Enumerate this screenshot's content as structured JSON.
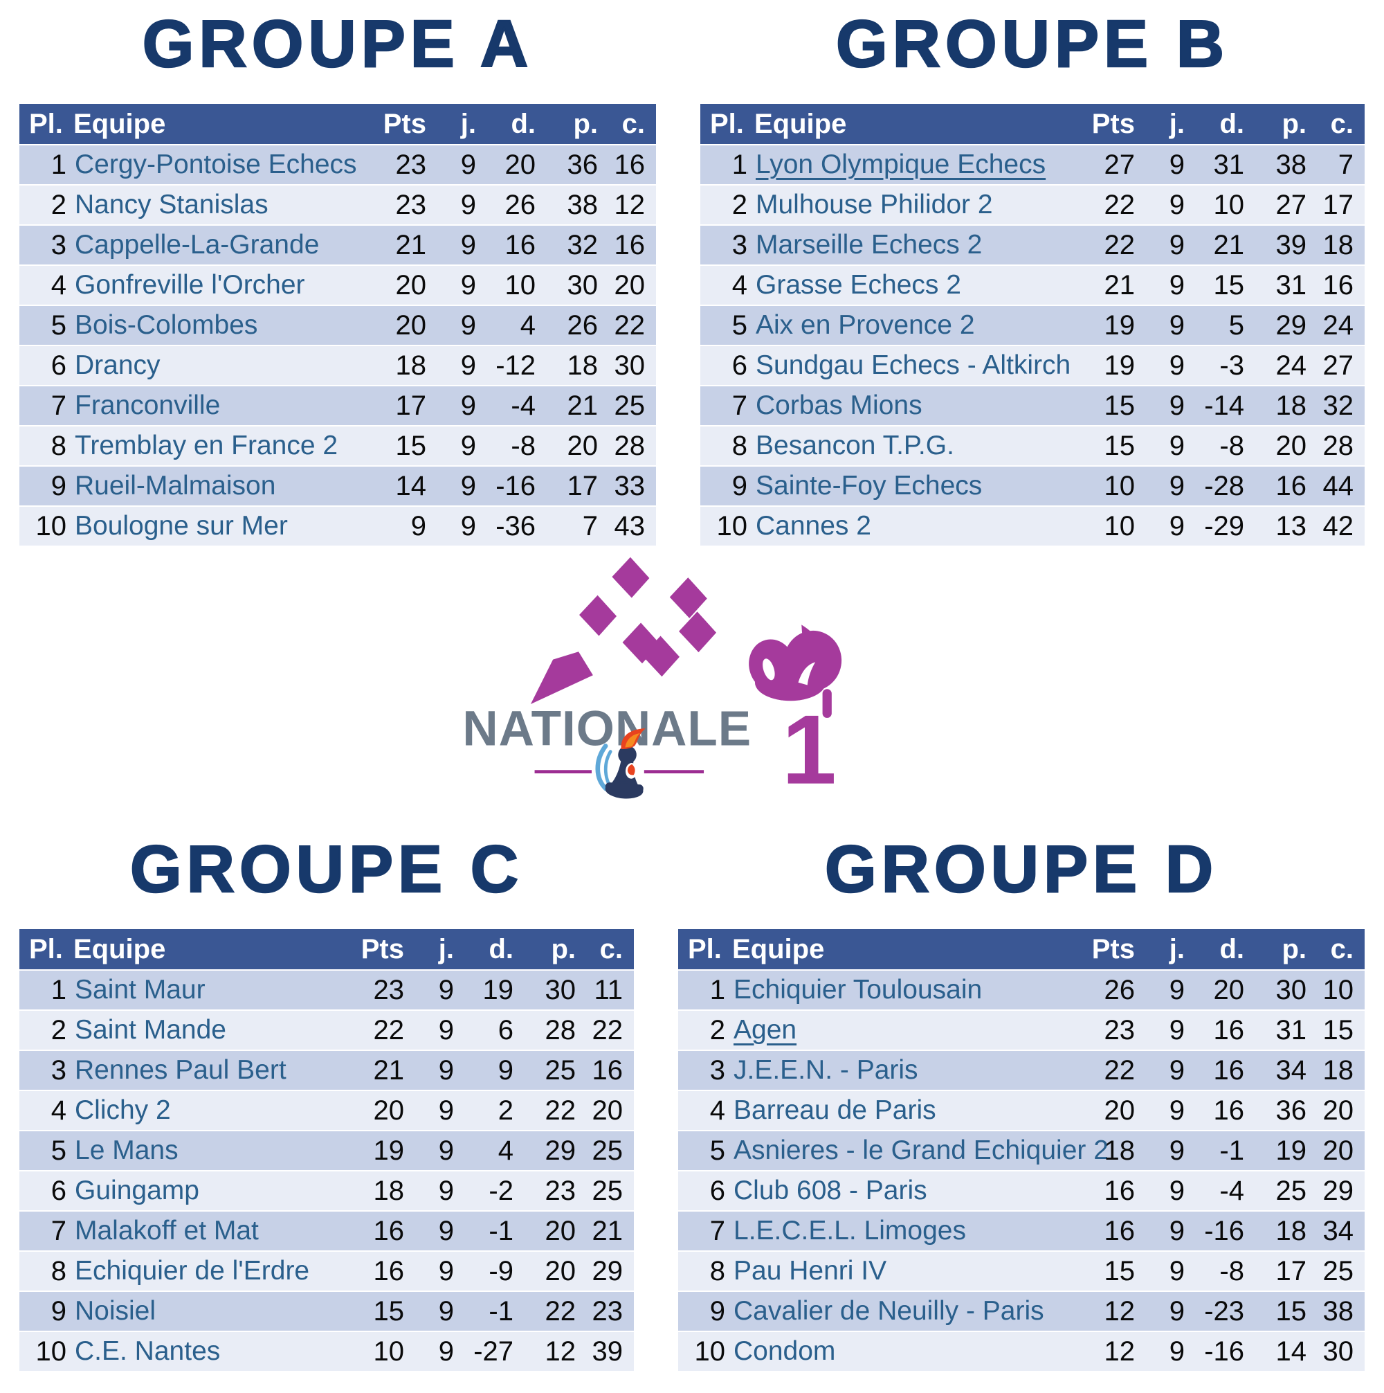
{
  "colors": {
    "header_bg": "#3A5794",
    "row_odd": "#C7D1E7",
    "row_even": "#E9EDF6",
    "team_text": "#2A5F8C",
    "stat_text": "#0a0a0a",
    "group_title": "#17396B",
    "logo_magenta": "#A53A9C",
    "logo_gray": "#6C7A89",
    "pawn_navy": "#2B3A60",
    "comb_red": "#E8431F",
    "comb_orange": "#F58B1F",
    "swoosh_blue": "#5FA8D8"
  },
  "logo": {
    "wordmark": "NATIONALE",
    "number": "1"
  },
  "chart_data": [
    {
      "type": "table",
      "title": "GROUPE A",
      "columns": [
        "Pl.",
        "Equipe",
        "Pts",
        "j.",
        "d.",
        "p.",
        "c."
      ],
      "rows": [
        {
          "pl": 1,
          "team": "Cergy-Pontoise Echecs",
          "pts": 23,
          "j": 9,
          "d": 20,
          "p": 36,
          "c": 16,
          "link": false
        },
        {
          "pl": 2,
          "team": "Nancy Stanislas",
          "pts": 23,
          "j": 9,
          "d": 26,
          "p": 38,
          "c": 12,
          "link": false
        },
        {
          "pl": 3,
          "team": "Cappelle-La-Grande",
          "pts": 21,
          "j": 9,
          "d": 16,
          "p": 32,
          "c": 16,
          "link": false
        },
        {
          "pl": 4,
          "team": "Gonfreville l'Orcher",
          "pts": 20,
          "j": 9,
          "d": 10,
          "p": 30,
          "c": 20,
          "link": false
        },
        {
          "pl": 5,
          "team": "Bois-Colombes",
          "pts": 20,
          "j": 9,
          "d": 4,
          "p": 26,
          "c": 22,
          "link": false
        },
        {
          "pl": 6,
          "team": "Drancy",
          "pts": 18,
          "j": 9,
          "d": -12,
          "p": 18,
          "c": 30,
          "link": false
        },
        {
          "pl": 7,
          "team": "Franconville",
          "pts": 17,
          "j": 9,
          "d": -4,
          "p": 21,
          "c": 25,
          "link": false
        },
        {
          "pl": 8,
          "team": "Tremblay en France 2",
          "pts": 15,
          "j": 9,
          "d": -8,
          "p": 20,
          "c": 28,
          "link": false
        },
        {
          "pl": 9,
          "team": "Rueil-Malmaison",
          "pts": 14,
          "j": 9,
          "d": -16,
          "p": 17,
          "c": 33,
          "link": false
        },
        {
          "pl": 10,
          "team": "Boulogne sur Mer",
          "pts": 9,
          "j": 9,
          "d": -36,
          "p": 7,
          "c": 43,
          "link": false
        }
      ]
    },
    {
      "type": "table",
      "title": "GROUPE B",
      "columns": [
        "Pl.",
        "Equipe",
        "Pts",
        "j.",
        "d.",
        "p.",
        "c."
      ],
      "rows": [
        {
          "pl": 1,
          "team": "Lyon Olympique Echecs",
          "pts": 27,
          "j": 9,
          "d": 31,
          "p": 38,
          "c": 7,
          "link": true
        },
        {
          "pl": 2,
          "team": "Mulhouse Philidor 2",
          "pts": 22,
          "j": 9,
          "d": 10,
          "p": 27,
          "c": 17,
          "link": false
        },
        {
          "pl": 3,
          "team": "Marseille Echecs 2",
          "pts": 22,
          "j": 9,
          "d": 21,
          "p": 39,
          "c": 18,
          "link": false
        },
        {
          "pl": 4,
          "team": "Grasse Echecs 2",
          "pts": 21,
          "j": 9,
          "d": 15,
          "p": 31,
          "c": 16,
          "link": false
        },
        {
          "pl": 5,
          "team": "Aix en Provence 2",
          "pts": 19,
          "j": 9,
          "d": 5,
          "p": 29,
          "c": 24,
          "link": false
        },
        {
          "pl": 6,
          "team": "Sundgau Echecs - Altkirch",
          "pts": 19,
          "j": 9,
          "d": -3,
          "p": 24,
          "c": 27,
          "link": false
        },
        {
          "pl": 7,
          "team": "Corbas Mions",
          "pts": 15,
          "j": 9,
          "d": -14,
          "p": 18,
          "c": 32,
          "link": false
        },
        {
          "pl": 8,
          "team": "Besancon T.P.G.",
          "pts": 15,
          "j": 9,
          "d": -8,
          "p": 20,
          "c": 28,
          "link": false
        },
        {
          "pl": 9,
          "team": "Sainte-Foy Echecs",
          "pts": 10,
          "j": 9,
          "d": -28,
          "p": 16,
          "c": 44,
          "link": false
        },
        {
          "pl": 10,
          "team": "Cannes 2",
          "pts": 10,
          "j": 9,
          "d": -29,
          "p": 13,
          "c": 42,
          "link": false
        }
      ]
    },
    {
      "type": "table",
      "title": "GROUPE C",
      "columns": [
        "Pl.",
        "Equipe",
        "Pts",
        "j.",
        "d.",
        "p.",
        "c."
      ],
      "rows": [
        {
          "pl": 1,
          "team": "Saint Maur",
          "pts": 23,
          "j": 9,
          "d": 19,
          "p": 30,
          "c": 11,
          "link": false
        },
        {
          "pl": 2,
          "team": "Saint Mande",
          "pts": 22,
          "j": 9,
          "d": 6,
          "p": 28,
          "c": 22,
          "link": false
        },
        {
          "pl": 3,
          "team": "Rennes Paul Bert",
          "pts": 21,
          "j": 9,
          "d": 9,
          "p": 25,
          "c": 16,
          "link": false
        },
        {
          "pl": 4,
          "team": "Clichy 2",
          "pts": 20,
          "j": 9,
          "d": 2,
          "p": 22,
          "c": 20,
          "link": false
        },
        {
          "pl": 5,
          "team": "Le Mans",
          "pts": 19,
          "j": 9,
          "d": 4,
          "p": 29,
          "c": 25,
          "link": false
        },
        {
          "pl": 6,
          "team": "Guingamp",
          "pts": 18,
          "j": 9,
          "d": -2,
          "p": 23,
          "c": 25,
          "link": false
        },
        {
          "pl": 7,
          "team": "Malakoff et Mat",
          "pts": 16,
          "j": 9,
          "d": -1,
          "p": 20,
          "c": 21,
          "link": false
        },
        {
          "pl": 8,
          "team": "Echiquier de l'Erdre",
          "pts": 16,
          "j": 9,
          "d": -9,
          "p": 20,
          "c": 29,
          "link": false
        },
        {
          "pl": 9,
          "team": "Noisiel",
          "pts": 15,
          "j": 9,
          "d": -1,
          "p": 22,
          "c": 23,
          "link": false
        },
        {
          "pl": 10,
          "team": "C.E. Nantes",
          "pts": 10,
          "j": 9,
          "d": -27,
          "p": 12,
          "c": 39,
          "link": false
        }
      ]
    },
    {
      "type": "table",
      "title": "GROUPE D",
      "columns": [
        "Pl.",
        "Equipe",
        "Pts",
        "j.",
        "d.",
        "p.",
        "c."
      ],
      "rows": [
        {
          "pl": 1,
          "team": "Echiquier Toulousain",
          "pts": 26,
          "j": 9,
          "d": 20,
          "p": 30,
          "c": 10,
          "link": false
        },
        {
          "pl": 2,
          "team": "Agen",
          "pts": 23,
          "j": 9,
          "d": 16,
          "p": 31,
          "c": 15,
          "link": true
        },
        {
          "pl": 3,
          "team": "J.E.E.N. - Paris",
          "pts": 22,
          "j": 9,
          "d": 16,
          "p": 34,
          "c": 18,
          "link": false
        },
        {
          "pl": 4,
          "team": "Barreau de Paris",
          "pts": 20,
          "j": 9,
          "d": 16,
          "p": 36,
          "c": 20,
          "link": false
        },
        {
          "pl": 5,
          "team": "Asnieres - le Grand Echiquier 2",
          "pts": 18,
          "j": 9,
          "d": -1,
          "p": 19,
          "c": 20,
          "link": false
        },
        {
          "pl": 6,
          "team": "Club 608 - Paris",
          "pts": 16,
          "j": 9,
          "d": -4,
          "p": 25,
          "c": 29,
          "link": false
        },
        {
          "pl": 7,
          "team": "L.E.C.E.L. Limoges",
          "pts": 16,
          "j": 9,
          "d": -16,
          "p": 18,
          "c": 34,
          "link": false
        },
        {
          "pl": 8,
          "team": "Pau Henri IV",
          "pts": 15,
          "j": 9,
          "d": -8,
          "p": 17,
          "c": 25,
          "link": false
        },
        {
          "pl": 9,
          "team": "Cavalier de Neuilly - Paris",
          "pts": 12,
          "j": 9,
          "d": -23,
          "p": 15,
          "c": 38,
          "link": false
        },
        {
          "pl": 10,
          "team": "Condom",
          "pts": 12,
          "j": 9,
          "d": -16,
          "p": 14,
          "c": 30,
          "link": false
        }
      ]
    }
  ]
}
